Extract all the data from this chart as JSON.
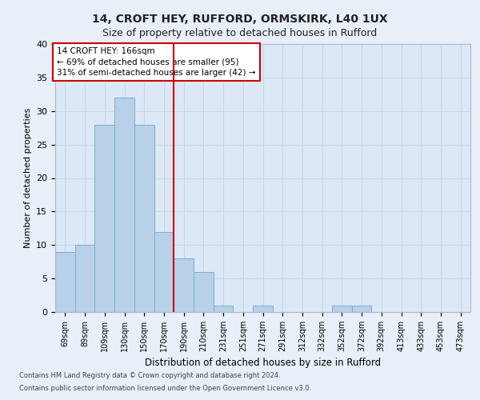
{
  "title1": "14, CROFT HEY, RUFFORD, ORMSKIRK, L40 1UX",
  "title2": "Size of property relative to detached houses in Rufford",
  "xlabel": "Distribution of detached houses by size in Rufford",
  "ylabel": "Number of detached properties",
  "footnote1": "Contains HM Land Registry data © Crown copyright and database right 2024.",
  "footnote2": "Contains public sector information licensed under the Open Government Licence v3.0.",
  "categories": [
    "69sqm",
    "89sqm",
    "109sqm",
    "130sqm",
    "150sqm",
    "170sqm",
    "190sqm",
    "210sqm",
    "231sqm",
    "251sqm",
    "271sqm",
    "291sqm",
    "312sqm",
    "332sqm",
    "352sqm",
    "372sqm",
    "392sqm",
    "413sqm",
    "433sqm",
    "453sqm",
    "473sqm"
  ],
  "values": [
    9,
    10,
    28,
    32,
    28,
    12,
    8,
    6,
    1,
    0,
    1,
    0,
    0,
    0,
    1,
    1,
    0,
    0,
    0,
    0,
    0
  ],
  "bar_color": "#b8d0e8",
  "bar_edge_color": "#7aaed0",
  "bar_width": 1.0,
  "ylim": [
    0,
    40
  ],
  "yticks": [
    0,
    5,
    10,
    15,
    20,
    25,
    30,
    35,
    40
  ],
  "vline_x": 5.5,
  "vline_color": "#cc0000",
  "annotation_line1": "14 CROFT HEY: 166sqm",
  "annotation_line2": "← 69% of detached houses are smaller (95)",
  "annotation_line3": "31% of semi-detached houses are larger (42) →",
  "annotation_box_color": "#ffffff",
  "annotation_box_edge_color": "#cc0000",
  "grid_color": "#c8d8e8",
  "bg_color": "#e8eff8",
  "plot_bg_color": "#dce8f5",
  "title1_fontsize": 10,
  "title2_fontsize": 9,
  "ylabel_fontsize": 8,
  "xlabel_fontsize": 8.5,
  "tick_fontsize": 7,
  "ytick_fontsize": 8,
  "footnote_fontsize": 6
}
